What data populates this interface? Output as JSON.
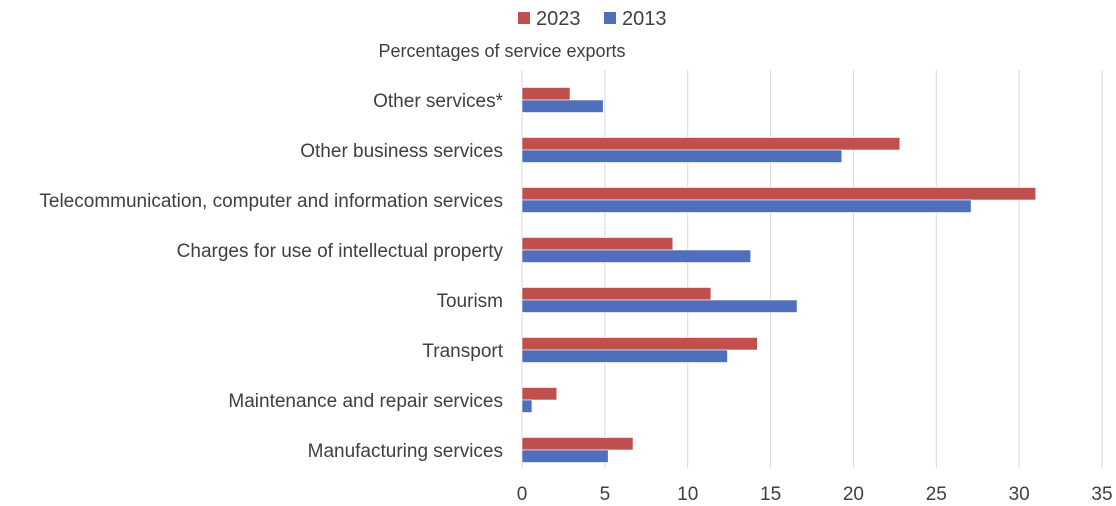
{
  "chart_data": {
    "type": "bar",
    "orientation": "horizontal",
    "title": "Percentages of service exports",
    "xlabel": "",
    "ylabel": "",
    "xlim": [
      0,
      35
    ],
    "ticks": [
      0,
      5,
      10,
      15,
      20,
      25,
      30,
      35
    ],
    "grid": true,
    "legend_position": "top",
    "categories": [
      "Other services*",
      "Other business services",
      "Telecommunication, computer and information services",
      "Charges for use of intellectual property",
      "Tourism",
      "Transport",
      "Maintenance and repair services",
      "Manufacturing services"
    ],
    "series": [
      {
        "name": "2023",
        "color": "#c0504d",
        "values": [
          2.9,
          22.8,
          31.0,
          9.1,
          11.4,
          14.2,
          2.1,
          6.7
        ]
      },
      {
        "name": "2013",
        "color": "#4f6fba",
        "values": [
          4.9,
          19.3,
          27.1,
          13.8,
          16.6,
          12.4,
          0.6,
          5.2
        ]
      }
    ]
  }
}
